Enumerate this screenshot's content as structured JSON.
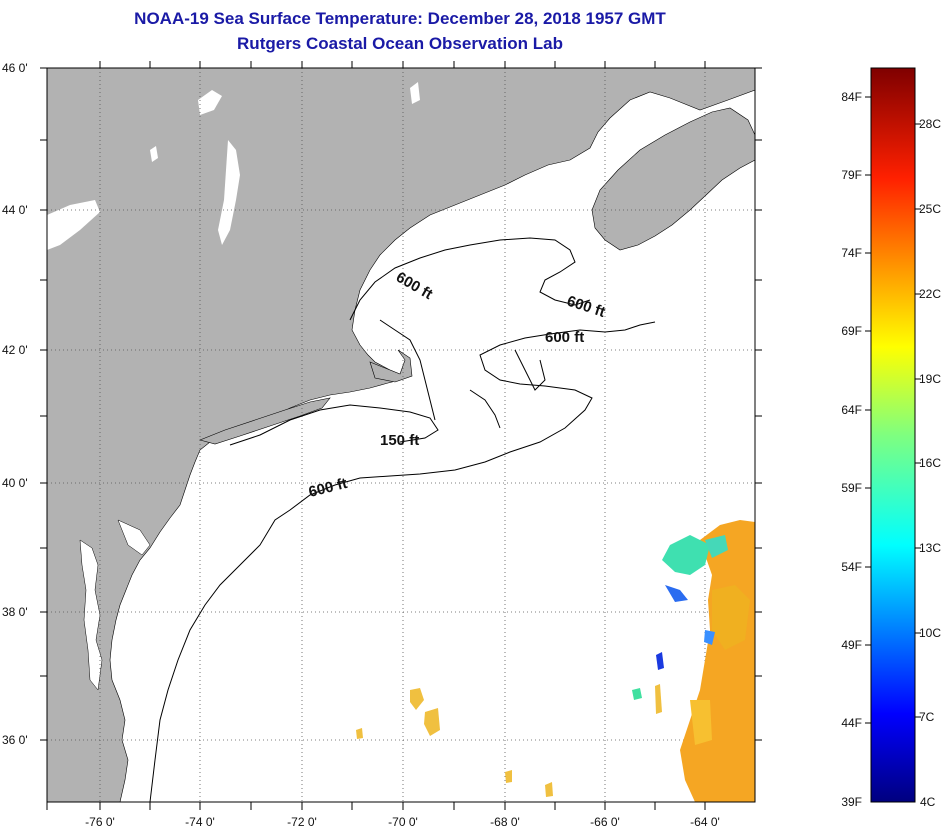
{
  "title": "NOAA-19 Sea Surface Temperature:  December 28, 2018 1957 GMT",
  "subtitle": "Rutgers Coastal Ocean Observation Lab",
  "latitude_labels": [
    "46 0'",
    "44 0'",
    "42 0'",
    "40 0'",
    "38 0'",
    "36 0'"
  ],
  "longitude_labels": [
    "-76 0'",
    "-74 0'",
    "-72 0'",
    "-70 0'",
    "-68 0'",
    "-66 0'",
    "-64 0'"
  ],
  "contour_labels": [
    "600 ft",
    "600 ft",
    "600 ft",
    "150 ft",
    "600 ft"
  ],
  "colorbar": {
    "fahrenheit": [
      "84F",
      "79F",
      "74F",
      "69F",
      "64F",
      "59F",
      "54F",
      "49F",
      "44F",
      "39F"
    ],
    "celsius": [
      "28C",
      "25C",
      "22C",
      "19C",
      "16C",
      "13C",
      "10C",
      "7C",
      "4C"
    ]
  },
  "colors": {
    "land": "#b2b2b2",
    "title": "#1a1aa6",
    "sst_warm": "#f5a623",
    "sst_cool": "#3fe0b0"
  }
}
